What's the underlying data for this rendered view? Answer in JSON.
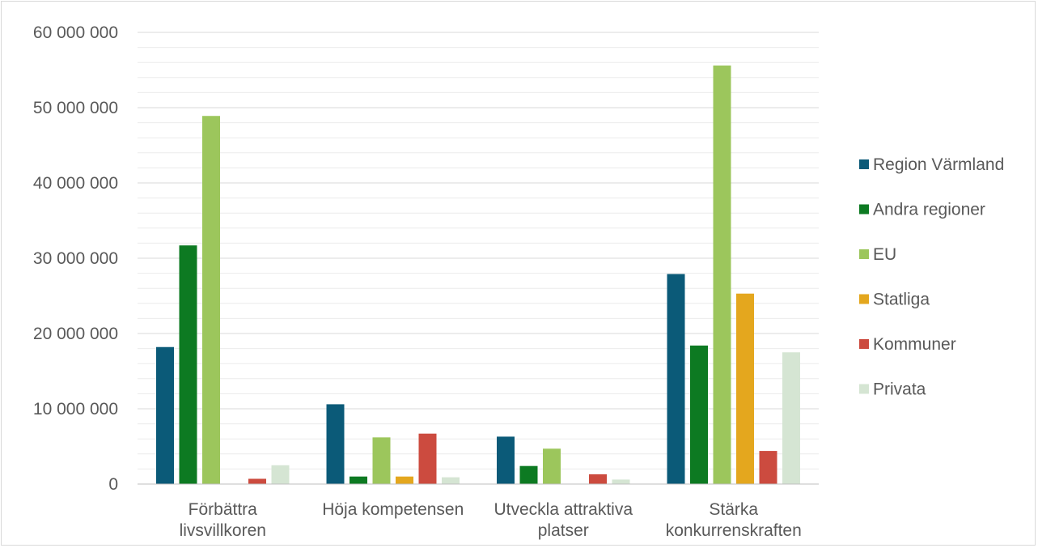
{
  "chart_data": {
    "type": "bar",
    "title": "",
    "xlabel": "",
    "ylabel": "",
    "ylim": [
      0,
      60000000
    ],
    "ytick_step": 10000000,
    "minor_gridlines": true,
    "legend_position": "right",
    "categories": [
      [
        "Förbättra",
        "livsvillkoren"
      ],
      [
        "Höja kompetensen"
      ],
      [
        "Utveckla attraktiva",
        "platser"
      ],
      [
        "Stärka",
        "konkurrenskraften"
      ]
    ],
    "yticks": [
      "0",
      "10 000 000",
      "20 000 000",
      "30 000 000",
      "40 000 000",
      "50 000 000",
      "60 000 000"
    ],
    "series": [
      {
        "name": "Region Värmland",
        "color": "#0b5a78",
        "values": [
          18200000,
          10600000,
          6300000,
          27900000
        ]
      },
      {
        "name": "Andra regioner",
        "color": "#0d7a22",
        "values": [
          31700000,
          1000000,
          2400000,
          18400000
        ]
      },
      {
        "name": "EU",
        "color": "#9cc65c",
        "values": [
          48900000,
          6200000,
          4700000,
          55600000
        ]
      },
      {
        "name": "Statliga",
        "color": "#e4a71e",
        "values": [
          0,
          1000000,
          0,
          25300000
        ]
      },
      {
        "name": "Kommuner",
        "color": "#cc4b3f",
        "values": [
          700000,
          6700000,
          1300000,
          4400000
        ]
      },
      {
        "name": "Privata",
        "color": "#d5e5d3",
        "values": [
          2500000,
          900000,
          600000,
          17500000
        ]
      }
    ]
  }
}
